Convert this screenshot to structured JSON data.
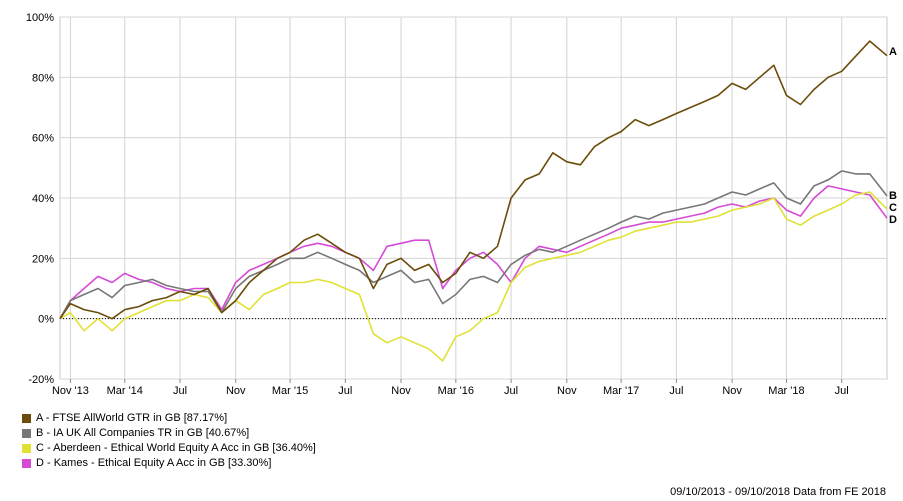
{
  "chart_data": {
    "type": "line",
    "y_tick_labels": [
      "-20%",
      "0%",
      "20%",
      "40%",
      "60%",
      "80%",
      "100%"
    ],
    "y_ticks": [
      -20,
      0,
      20,
      40,
      60,
      80,
      100
    ],
    "ylim": [
      -20,
      100
    ],
    "x_tick_labels": [
      "Nov '13",
      "Mar '14",
      "Jul",
      "Nov",
      "Mar '15",
      "Jul",
      "Nov",
      "Mar '16",
      "Jul",
      "Nov",
      "Mar '17",
      "Jul",
      "Nov",
      "Mar '18",
      "Jul"
    ],
    "x_ticks": [
      "2013-11-01",
      "2014-03-01",
      "2014-07-01",
      "2014-11-01",
      "2015-03-01",
      "2015-07-01",
      "2015-11-01",
      "2016-03-01",
      "2016-07-01",
      "2016-11-01",
      "2017-03-01",
      "2017-07-01",
      "2017-11-01",
      "2018-03-01",
      "2018-07-01"
    ],
    "xlim": [
      "2013-10-09",
      "2018-10-09"
    ],
    "x": [
      "2013-10-09",
      "2013-11-01",
      "2013-12-01",
      "2014-01-01",
      "2014-02-01",
      "2014-03-01",
      "2014-04-01",
      "2014-05-01",
      "2014-06-01",
      "2014-07-01",
      "2014-08-01",
      "2014-09-01",
      "2014-10-01",
      "2014-11-01",
      "2014-12-01",
      "2015-01-01",
      "2015-02-01",
      "2015-03-01",
      "2015-04-01",
      "2015-05-01",
      "2015-06-01",
      "2015-07-01",
      "2015-08-01",
      "2015-09-01",
      "2015-10-01",
      "2015-11-01",
      "2015-12-01",
      "2016-01-01",
      "2016-02-01",
      "2016-03-01",
      "2016-04-01",
      "2016-05-01",
      "2016-06-01",
      "2016-07-01",
      "2016-08-01",
      "2016-09-01",
      "2016-10-01",
      "2016-11-01",
      "2016-12-01",
      "2017-01-01",
      "2017-02-01",
      "2017-03-01",
      "2017-04-01",
      "2017-05-01",
      "2017-06-01",
      "2017-07-01",
      "2017-08-01",
      "2017-09-01",
      "2017-10-01",
      "2017-11-01",
      "2017-12-01",
      "2018-01-01",
      "2018-02-01",
      "2018-03-01",
      "2018-04-01",
      "2018-05-01",
      "2018-06-01",
      "2018-07-01",
      "2018-08-01",
      "2018-09-01",
      "2018-10-09"
    ],
    "series": [
      {
        "label": "A",
        "color": "#6b4c0a",
        "values": [
          0,
          5,
          3,
          2,
          0,
          3,
          4,
          6,
          7,
          9,
          8,
          10,
          2,
          6,
          12,
          16,
          20,
          22,
          26,
          28,
          25,
          22,
          20,
          10,
          18,
          20,
          16,
          18,
          12,
          15,
          22,
          20,
          24,
          40,
          46,
          48,
          55,
          52,
          51,
          57,
          60,
          62,
          66,
          64,
          66,
          68,
          70,
          72,
          74,
          78,
          76,
          80,
          84,
          74,
          71,
          76,
          80,
          82,
          87,
          92,
          87.17
        ]
      },
      {
        "label": "B",
        "color": "#777777",
        "values": [
          0,
          6,
          8,
          10,
          7,
          11,
          12,
          13,
          11,
          10,
          9,
          9,
          2,
          10,
          14,
          16,
          18,
          20,
          20,
          22,
          20,
          18,
          16,
          12,
          14,
          16,
          12,
          13,
          5,
          8,
          13,
          14,
          12,
          18,
          21,
          23,
          22,
          24,
          26,
          28,
          30,
          32,
          34,
          33,
          35,
          36,
          37,
          38,
          40,
          42,
          41,
          43,
          45,
          40,
          38,
          44,
          46,
          49,
          48,
          48,
          40.67
        ]
      },
      {
        "label": "C",
        "color": "#e1e135",
        "values": [
          0,
          2,
          -4,
          0,
          -4,
          0,
          2,
          4,
          6,
          6,
          8,
          7,
          2,
          6,
          3,
          8,
          10,
          12,
          12,
          13,
          12,
          10,
          8,
          -5,
          -8,
          -6,
          -8,
          -10,
          -14,
          -6,
          -4,
          0,
          2,
          12,
          17,
          19,
          20,
          21,
          22,
          24,
          26,
          27,
          29,
          30,
          31,
          32,
          32,
          33,
          34,
          36,
          37,
          38,
          40,
          33,
          31,
          34,
          36,
          38,
          41,
          42,
          36.4
        ]
      },
      {
        "label": "D",
        "color": "#d54bd5",
        "values": [
          0,
          6,
          10,
          14,
          12,
          15,
          13,
          12,
          10,
          9,
          10,
          10,
          3,
          12,
          16,
          18,
          20,
          22,
          24,
          25,
          24,
          22,
          20,
          16,
          24,
          25,
          26,
          26,
          10,
          16,
          20,
          22,
          18,
          12,
          20,
          24,
          23,
          22,
          24,
          26,
          28,
          30,
          31,
          32,
          32,
          33,
          34,
          35,
          37,
          38,
          37,
          39,
          40,
          36,
          34,
          40,
          44,
          43,
          42,
          41,
          33.3
        ]
      }
    ],
    "legend": [
      {
        "label": "A - FTSE AllWorld GTR in GB [87.17%]",
        "color": "#6b4c0a"
      },
      {
        "label": "B - IA UK All Companies TR in GB [40.67%]",
        "color": "#777777"
      },
      {
        "label": "C - Aberdeen - Ethical World Equity A Acc in GB [36.40%]",
        "color": "#e1e135"
      },
      {
        "label": "D - Kames - Ethical Equity A Acc in GB [33.30%]",
        "color": "#d54bd5"
      }
    ],
    "end_labels": [
      {
        "text": "A",
        "series": 0
      },
      {
        "text": "B",
        "series": 1
      },
      {
        "text": "C",
        "series": 2
      },
      {
        "text": "D",
        "series": 3
      }
    ],
    "grid": true,
    "zero_line": "dotted",
    "legend_position": "bottom-left",
    "footer": "09/10/2013 - 09/10/2018 Data from FE 2018"
  }
}
